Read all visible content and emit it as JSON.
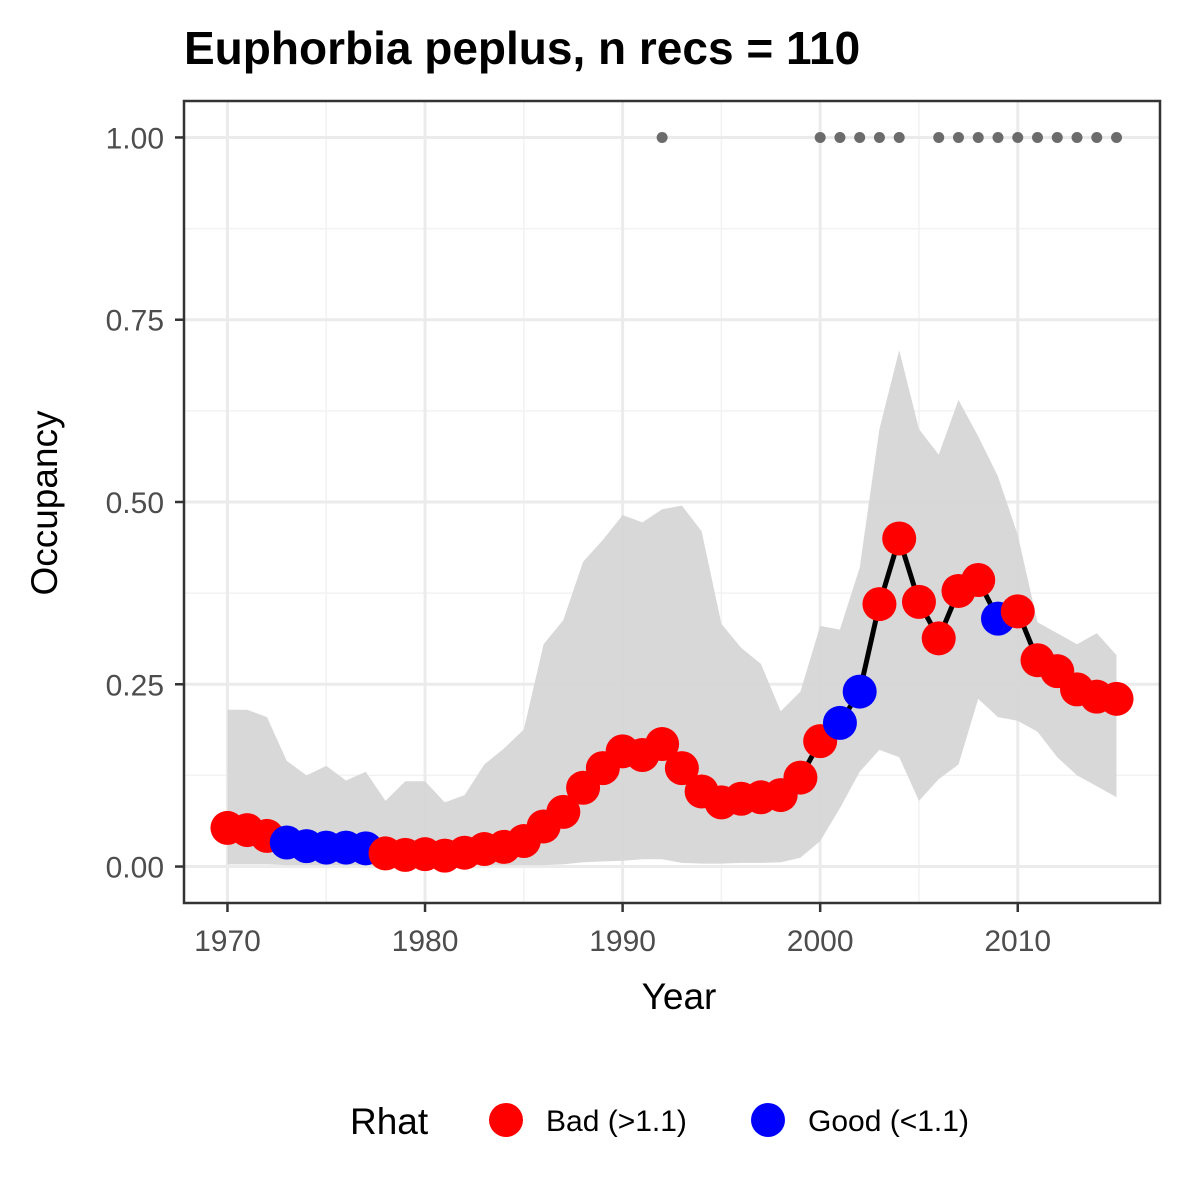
{
  "chart_data": {
    "type": "line",
    "title": "Euphorbia peplus, n recs = 110",
    "xlabel": "Year",
    "ylabel": "Occupancy",
    "xlim": [
      1967.8,
      2017.2
    ],
    "ylim": [
      -0.05,
      1.05
    ],
    "grid": true,
    "x_ticks": [
      1970,
      1980,
      1990,
      2000,
      2010
    ],
    "x_tick_labels": [
      "1970",
      "1980",
      "1990",
      "2000",
      "2010"
    ],
    "y_ticks": [
      0,
      0.25,
      0.5,
      0.75,
      1.0
    ],
    "y_tick_labels": [
      "0.00",
      "0.25",
      "0.50",
      "0.75",
      "1.00"
    ],
    "legend": {
      "title": "Rhat",
      "placement": "bottom",
      "entries": [
        {
          "key": "bad",
          "label": "Bad (>1.1)",
          "color": "#ff0000"
        },
        {
          "key": "good",
          "label": "Good (<1.1)",
          "color": "#0000ff"
        }
      ]
    },
    "colors": {
      "bad": "#ff0000",
      "good": "#0000ff",
      "line": "#000000",
      "ribbon": "#d6d6d6",
      "record": "#6b6b6b"
    },
    "series": [
      {
        "x": [
          1970,
          1971,
          1972,
          1973,
          1974,
          1975,
          1976,
          1977,
          1978,
          1979,
          1980,
          1981,
          1982,
          1983,
          1984,
          1985,
          1986,
          1987,
          1988,
          1989,
          1990,
          1991,
          1992,
          1993,
          1994,
          1995,
          1996,
          1997,
          1998,
          1999,
          2000,
          2001,
          2002,
          2003,
          2004,
          2005,
          2006,
          2007,
          2008,
          2009,
          2010,
          2011,
          2012,
          2013,
          2014,
          2015
        ],
        "y": [
          0.053,
          0.05,
          0.042,
          0.033,
          0.028,
          0.026,
          0.026,
          0.025,
          0.018,
          0.016,
          0.017,
          0.015,
          0.019,
          0.024,
          0.027,
          0.035,
          0.055,
          0.075,
          0.108,
          0.135,
          0.158,
          0.153,
          0.168,
          0.135,
          0.103,
          0.088,
          0.093,
          0.095,
          0.098,
          0.122,
          0.172,
          0.197,
          0.24,
          0.36,
          0.45,
          0.363,
          0.313,
          0.378,
          0.393,
          0.34,
          0.35,
          0.283,
          0.268,
          0.243,
          0.233,
          0.23
        ],
        "rhat": [
          "bad",
          "bad",
          "bad",
          "good",
          "good",
          "good",
          "good",
          "good",
          "bad",
          "bad",
          "bad",
          "bad",
          "bad",
          "bad",
          "bad",
          "bad",
          "bad",
          "bad",
          "bad",
          "bad",
          "bad",
          "bad",
          "bad",
          "bad",
          "bad",
          "bad",
          "bad",
          "bad",
          "bad",
          "bad",
          "bad",
          "good",
          "good",
          "bad",
          "bad",
          "bad",
          "bad",
          "bad",
          "bad",
          "good",
          "bad",
          "bad",
          "bad",
          "bad",
          "bad",
          "bad"
        ],
        "lower": [
          0.003,
          0.003,
          0.003,
          0.002,
          0.002,
          0.002,
          0.002,
          0.002,
          0.002,
          0.002,
          0.002,
          0.002,
          0.002,
          0.002,
          0.002,
          0.002,
          0.002,
          0.003,
          0.006,
          0.007,
          0.008,
          0.01,
          0.01,
          0.005,
          0.004,
          0.004,
          0.005,
          0.005,
          0.006,
          0.012,
          0.035,
          0.08,
          0.13,
          0.16,
          0.15,
          0.09,
          0.12,
          0.14,
          0.23,
          0.205,
          0.2,
          0.185,
          0.15,
          0.125,
          0.11,
          0.095
        ],
        "upper": [
          0.215,
          0.215,
          0.205,
          0.145,
          0.125,
          0.138,
          0.118,
          0.13,
          0.09,
          0.117,
          0.117,
          0.088,
          0.098,
          0.14,
          0.162,
          0.188,
          0.305,
          0.338,
          0.418,
          0.448,
          0.482,
          0.472,
          0.49,
          0.495,
          0.46,
          0.333,
          0.3,
          0.278,
          0.213,
          0.24,
          0.33,
          0.325,
          0.41,
          0.6,
          0.708,
          0.6,
          0.565,
          0.64,
          0.59,
          0.535,
          0.455,
          0.335,
          0.32,
          0.305,
          0.32,
          0.29
        ]
      }
    ],
    "records": {
      "x": [
        1992,
        2000,
        2001,
        2002,
        2003,
        2004,
        2006,
        2007,
        2008,
        2009,
        2010,
        2011,
        2012,
        2013,
        2014,
        2015
      ],
      "y": [
        1,
        1,
        1,
        1,
        1,
        1,
        1,
        1,
        1,
        1,
        1,
        1,
        1,
        1,
        1,
        1
      ]
    }
  }
}
